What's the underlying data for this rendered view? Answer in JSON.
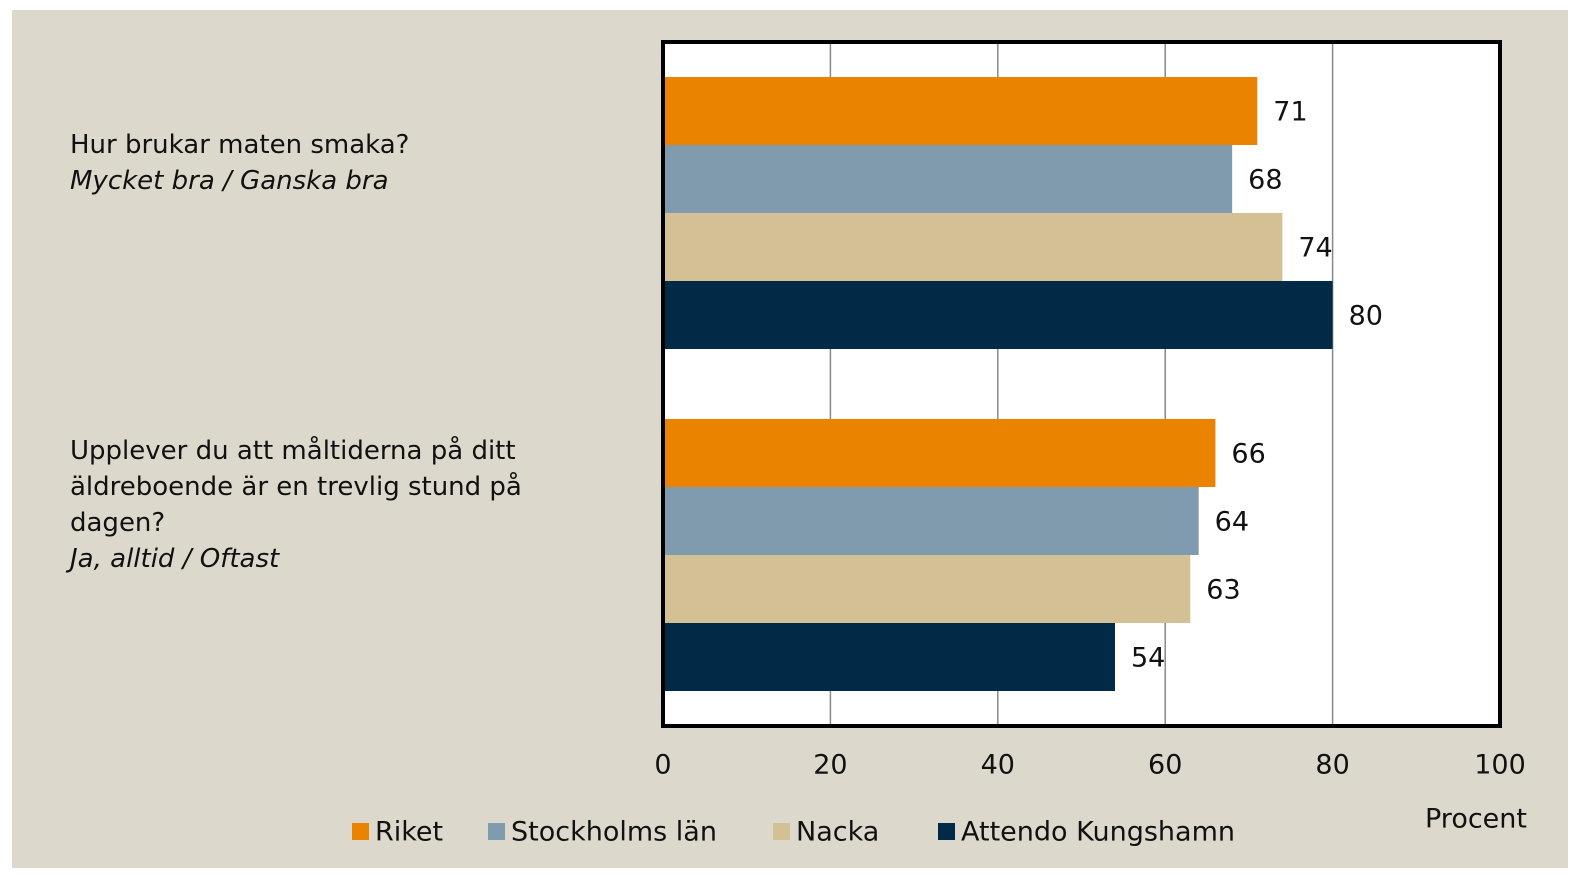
{
  "chart_data": {
    "type": "barh",
    "categories": [
      "Hur brukar maten smaka?",
      "Upplever du att måltiderna på ditt äldreboende är en trevlig stund på dagen?"
    ],
    "category_subtitles": [
      "Mycket bra / Ganska bra",
      "Ja, alltid / Oftast"
    ],
    "series": [
      {
        "name": "Riket",
        "color": "#e98300",
        "values": [
          71,
          66
        ]
      },
      {
        "name": "Stockholms län",
        "color": "#7f9bad",
        "values": [
          68,
          64
        ]
      },
      {
        "name": "Nacka",
        "color": "#d4c095",
        "values": [
          74,
          63
        ]
      },
      {
        "name": "Attendo Kungshamn",
        "color": "#002a45",
        "values": [
          80,
          54
        ]
      }
    ],
    "xlim": [
      0,
      100
    ],
    "xticks": [
      0,
      20,
      40,
      60,
      80,
      100
    ],
    "xlabel": "Procent",
    "grid": true
  }
}
